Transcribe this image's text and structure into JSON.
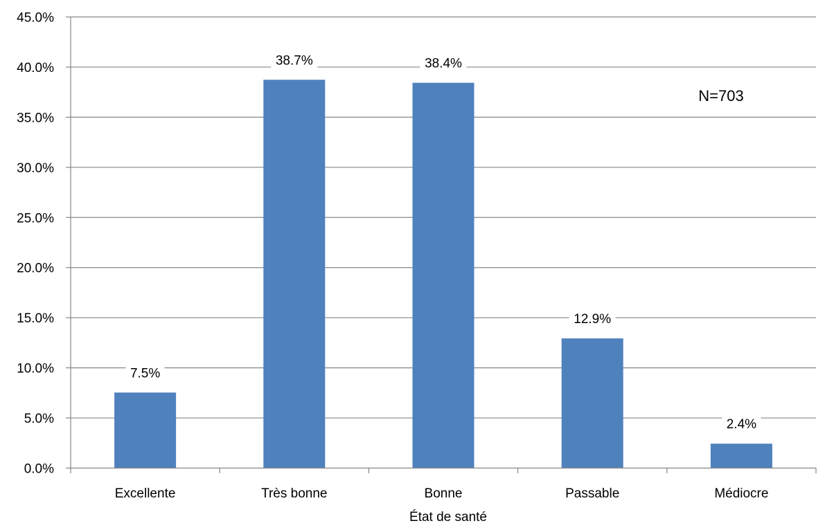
{
  "chart_data": {
    "type": "bar",
    "title": "",
    "xlabel": "État de santé",
    "ylabel": "",
    "categories": [
      "Excellente",
      "Très bonne",
      "Bonne",
      "Passable",
      "Médiocre"
    ],
    "values": [
      7.5,
      38.7,
      38.4,
      12.9,
      2.4
    ],
    "data_labels": [
      "7.5%",
      "38.7%",
      "38.4%",
      "12.9%",
      "2.4%"
    ],
    "y_ticks": [
      0,
      5,
      10,
      15,
      20,
      25,
      30,
      35,
      40,
      45
    ],
    "y_tick_labels": [
      "0.0%",
      "5.0%",
      "10.0%",
      "15.0%",
      "20.0%",
      "25.0%",
      "30.0%",
      "35.0%",
      "40.0%",
      "45.0%"
    ],
    "ylim": [
      0,
      45
    ],
    "grid": true,
    "legend": "none",
    "annotation": "N=703",
    "colors": {
      "bar": "#4F81BD",
      "grid": "#868686",
      "axis": "#868686"
    }
  }
}
